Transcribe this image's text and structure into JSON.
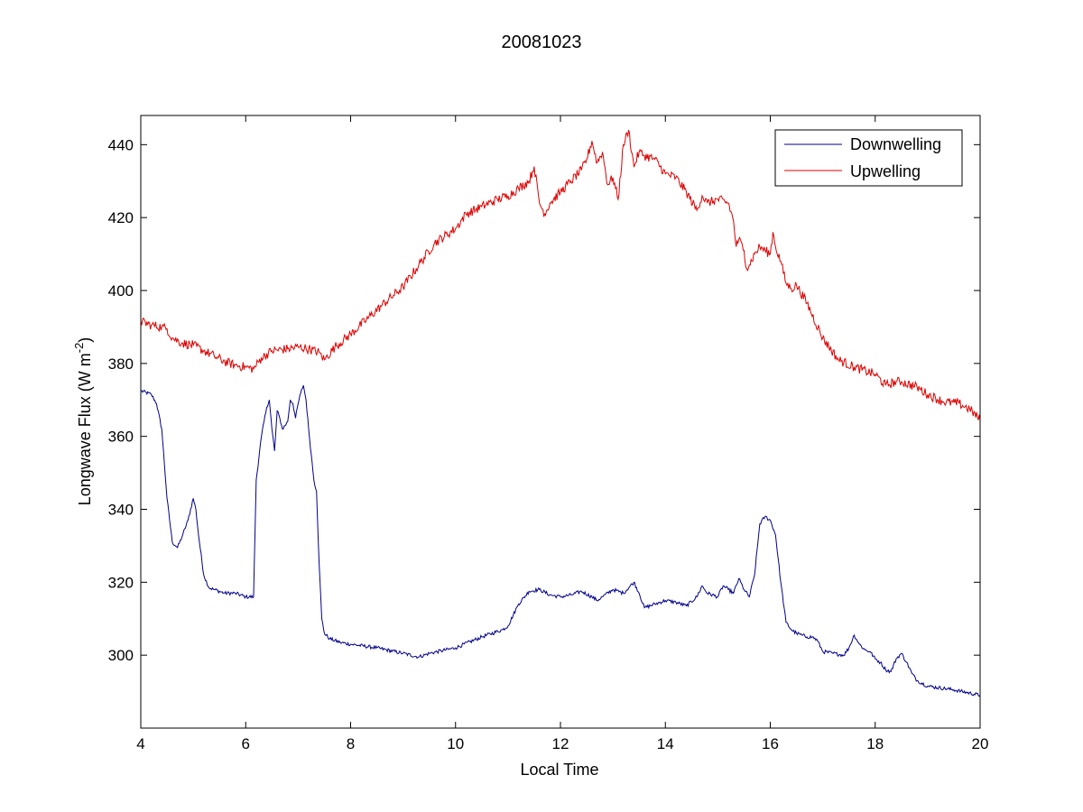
{
  "chart_data": {
    "type": "line",
    "title": "20081023",
    "xlabel": "Local Time",
    "ylabel": {
      "prefix": "Longwave Flux (W m",
      "superscript": "-2",
      "suffix": ")"
    },
    "xlim": [
      4,
      20
    ],
    "ylim": [
      280,
      448
    ],
    "x_ticks": [
      4,
      6,
      8,
      10,
      12,
      14,
      16,
      18,
      20
    ],
    "y_ticks": [
      300,
      320,
      340,
      360,
      380,
      400,
      420,
      440
    ],
    "grid": false,
    "legend_position": "top-right",
    "series": [
      {
        "name": "Downwelling",
        "color": "#00008b",
        "x": [
          4.0,
          4.2,
          4.3,
          4.4,
          4.5,
          4.6,
          4.7,
          4.8,
          4.9,
          5.0,
          5.05,
          5.1,
          5.2,
          5.3,
          5.4,
          5.6,
          5.8,
          6.0,
          6.15,
          6.2,
          6.3,
          6.4,
          6.45,
          6.5,
          6.55,
          6.6,
          6.65,
          6.7,
          6.8,
          6.85,
          6.9,
          6.95,
          7.0,
          7.05,
          7.1,
          7.15,
          7.2,
          7.25,
          7.3,
          7.35,
          7.4,
          7.45,
          7.5,
          7.6,
          7.8,
          8.0,
          8.5,
          9.0,
          9.3,
          9.5,
          10.0,
          10.5,
          10.9,
          11.0,
          11.2,
          11.4,
          11.6,
          11.8,
          12.0,
          12.2,
          12.4,
          12.6,
          12.7,
          12.8,
          13.0,
          13.2,
          13.4,
          13.5,
          13.6,
          13.8,
          14.0,
          14.2,
          14.4,
          14.6,
          14.7,
          14.8,
          15.0,
          15.1,
          15.2,
          15.3,
          15.4,
          15.5,
          15.6,
          15.7,
          15.8,
          15.9,
          16.0,
          16.1,
          16.2,
          16.3,
          16.4,
          16.5,
          16.6,
          16.7,
          16.8,
          16.9,
          17.0,
          17.2,
          17.4,
          17.5,
          17.6,
          17.7,
          17.8,
          17.9,
          18.0,
          18.1,
          18.2,
          18.3,
          18.4,
          18.5,
          18.6,
          18.7,
          18.8,
          19.0,
          19.5,
          20.0
        ],
        "values": [
          372.5,
          371.5,
          369,
          362,
          343,
          331,
          329.5,
          333,
          337,
          343,
          340,
          333,
          322,
          318.5,
          318,
          317,
          317,
          316,
          316,
          348,
          360,
          368,
          370,
          362,
          356,
          367,
          365,
          362,
          364,
          370,
          369,
          365,
          369,
          372,
          374,
          370,
          362,
          355,
          348,
          345,
          325,
          310,
          306,
          304.5,
          303.5,
          303,
          302,
          300.5,
          299.5,
          300.5,
          302,
          305,
          307,
          308,
          314,
          317.5,
          318,
          316.5,
          316,
          316.5,
          317.5,
          316,
          315,
          316,
          318,
          317,
          320,
          317,
          313,
          314,
          315,
          314.5,
          313.5,
          316,
          319,
          317,
          316,
          319,
          318,
          317,
          321,
          318,
          316,
          322,
          336,
          338,
          337,
          333,
          320,
          309,
          307,
          306,
          305.5,
          305,
          305,
          304,
          301,
          300.5,
          300,
          302,
          305.5,
          303,
          301.5,
          301,
          299,
          298,
          296,
          295.5,
          299,
          300.5,
          298,
          295,
          293,
          291.5,
          290.5,
          289
        ]
      },
      {
        "name": "Upwelling",
        "color": "#dd0000",
        "x": [
          4.0,
          4.2,
          4.4,
          4.5,
          4.6,
          4.8,
          5.0,
          5.2,
          5.4,
          5.6,
          5.8,
          6.0,
          6.15,
          6.3,
          6.5,
          6.8,
          7.0,
          7.2,
          7.4,
          7.5,
          7.7,
          8.0,
          8.3,
          8.6,
          9.0,
          9.3,
          9.6,
          10.0,
          10.2,
          10.5,
          10.8,
          11.0,
          11.2,
          11.4,
          11.5,
          11.6,
          11.7,
          11.8,
          12.0,
          12.2,
          12.4,
          12.5,
          12.6,
          12.7,
          12.8,
          12.9,
          13.0,
          13.1,
          13.2,
          13.3,
          13.4,
          13.5,
          13.6,
          13.8,
          14.0,
          14.2,
          14.4,
          14.6,
          14.7,
          14.8,
          15.0,
          15.2,
          15.3,
          15.35,
          15.4,
          15.5,
          15.55,
          15.6,
          15.7,
          15.8,
          15.9,
          16.0,
          16.05,
          16.1,
          16.2,
          16.3,
          16.4,
          16.5,
          16.7,
          17.0,
          17.3,
          17.6,
          18.0,
          18.2,
          18.4,
          18.5,
          18.8,
          19.0,
          19.3,
          19.6,
          19.8,
          20.0
        ],
        "values": [
          391.5,
          390.5,
          390,
          389.5,
          387,
          385.5,
          385,
          383.5,
          382,
          380.5,
          379.5,
          379,
          378.5,
          381.5,
          383.5,
          384,
          384.5,
          384,
          383,
          381,
          384.5,
          388,
          392,
          396,
          401,
          407,
          413,
          417,
          421,
          423,
          425,
          426,
          428,
          430,
          434,
          424,
          421,
          424,
          427,
          430,
          433,
          436,
          441,
          435,
          438,
          429,
          431,
          425,
          440,
          444,
          434,
          438,
          437,
          436,
          432,
          431,
          427,
          422,
          426,
          424,
          425,
          424,
          419,
          412,
          414,
          411,
          406,
          407,
          410,
          412,
          411,
          410,
          416,
          412,
          408,
          402,
          400.5,
          401.5,
          396.5,
          387,
          381,
          379,
          377,
          374,
          375,
          375,
          373.5,
          371.5,
          369.5,
          369,
          367.5,
          364.5
        ]
      }
    ]
  }
}
